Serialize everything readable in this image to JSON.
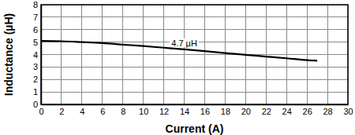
{
  "chart_data": {
    "type": "line",
    "x_label": "Current (A)",
    "y_label": "Inductance (µH)",
    "x": [
      0,
      2,
      4,
      6,
      8,
      10,
      12,
      14,
      16,
      18,
      20,
      22,
      24,
      26,
      27
    ],
    "series": [
      {
        "name": "4.7 µH",
        "color": "#000000",
        "values": [
          5.1,
          5.07,
          5.0,
          4.92,
          4.8,
          4.68,
          4.55,
          4.42,
          4.28,
          4.12,
          3.98,
          3.84,
          3.7,
          3.55,
          3.5
        ]
      }
    ],
    "xlim": [
      0,
      30
    ],
    "xticks": [
      0,
      2,
      4,
      6,
      8,
      10,
      12,
      14,
      16,
      18,
      20,
      22,
      24,
      26,
      28,
      30
    ],
    "ylim": [
      0,
      8
    ],
    "yticks": [
      0,
      1,
      2,
      3,
      4,
      5,
      6,
      7,
      8
    ],
    "grid": true
  }
}
